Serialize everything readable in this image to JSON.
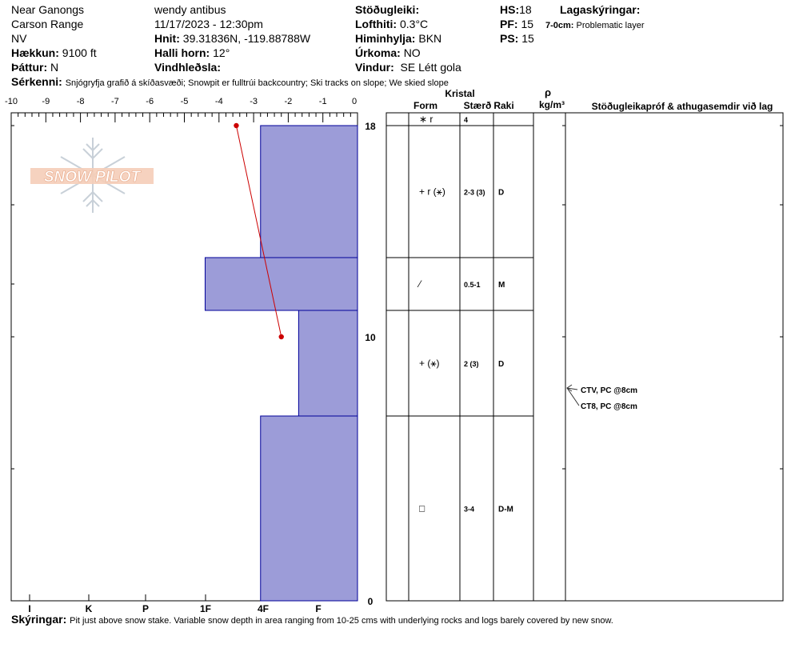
{
  "header": {
    "location": "Near Ganongs",
    "range": "Carson Range",
    "aspect_code": "NV",
    "elevation_label": "Hækkun:",
    "elevation_value": "9100 ft",
    "aspect_label": "Þáttur:",
    "aspect_value": "N",
    "observer": "wendy antibus",
    "datetime": "11/17/2023 - 12:30pm",
    "coords_label": "Hnit:",
    "coords_value": "39.31836N, -119.88788W",
    "slope_label": "Halli horn:",
    "slope_value": "12°",
    "wind_loading_label": "Vindhleðsla:",
    "wind_loading_value": "",
    "stability_label": "Stöðugleiki:",
    "stability_value": "",
    "air_temp_label": "Lofthiti:",
    "air_temp_value": "0.3°C",
    "sky_label": "Himinhylja:",
    "sky_value": "BKN",
    "precip_label": "Úrkoma:",
    "precip_value": "NO",
    "wind_label": "Vindur:",
    "wind_value": "SE Létt gola",
    "hs_label": "HS:",
    "hs_value": "18",
    "pf_label": "PF:",
    "pf_value": "15",
    "ps_label": "PS:",
    "ps_value": "15",
    "layer_notes_label": "Lagaskýringar:",
    "layer_note_range": "7-0cm:",
    "layer_note_text": "Problematic layer",
    "features_label": "Sérkenni:",
    "features_value": "Snjógryfja grafið á skíðasvæði; Snowpit er fulltrúi backcountry; Ski tracks on slope; We skied slope"
  },
  "logo": {
    "text": "SNOW PILOT"
  },
  "table": {
    "crystal_header": "Kristal",
    "form_header": "Form",
    "size_header": "Stærð",
    "moisture_header": "Raki",
    "density_symbol": "ρ",
    "density_unit": "kg/m³",
    "comments_header": "Stöðugleikapróf & athugasemdir við lag",
    "layers": [
      {
        "top": 18,
        "bottom": 18,
        "form": "∗ r",
        "size": "4",
        "moisture": ""
      },
      {
        "top": 18,
        "bottom": 13,
        "form": "+ r (⚹)",
        "size": "2-3 (3)",
        "moisture": "D"
      },
      {
        "top": 13,
        "bottom": 11,
        "form": "⁄",
        "size": "0.5-1",
        "moisture": "M"
      },
      {
        "top": 11,
        "bottom": 7,
        "form": "+ (⚹)",
        "size": "2 (3)",
        "moisture": "D"
      },
      {
        "top": 7,
        "bottom": 0,
        "form": "□",
        "size": "3-4",
        "moisture": "D-M"
      }
    ],
    "tests": [
      {
        "label": "CTV, PC @8cm",
        "depth": 8
      },
      {
        "label": "CT8, PC @8cm",
        "depth": 8
      }
    ]
  },
  "chart_data": {
    "type": "bar",
    "xlabel": "",
    "ylabel": "",
    "temp_axis_ticks": [
      "-10",
      "-9",
      "-8",
      "-7",
      "-6",
      "-5",
      "-4",
      "-3",
      "-2",
      "-1",
      "0"
    ],
    "hardness_ticks": [
      "I",
      "K",
      "P",
      "1F",
      "4F",
      "F"
    ],
    "ylim": [
      0,
      18
    ],
    "y_tick_labels": [
      "18",
      "10",
      "0"
    ],
    "hardness_layers": [
      {
        "top": 18,
        "bottom": 13,
        "temp_extent": -2.8
      },
      {
        "top": 13,
        "bottom": 11,
        "temp_extent": -4.4
      },
      {
        "top": 11,
        "bottom": 7,
        "temp_extent": -1.7
      },
      {
        "top": 7,
        "bottom": 0,
        "temp_extent": -2.8
      }
    ],
    "temperature_profile": [
      {
        "depth": 18,
        "temp": -3.5
      },
      {
        "depth": 10,
        "temp": -2.2
      }
    ],
    "colors": {
      "layer_fill": "#9c9cd8",
      "layer_stroke": "#000099",
      "temp_line": "#cc0000"
    }
  },
  "footer": {
    "comments_label": "Skýringar:",
    "comments_value": "Pit just above snow stake.  Variable snow depth in area ranging from 10-25 cms with underlying rocks and logs barely covered by new snow."
  }
}
